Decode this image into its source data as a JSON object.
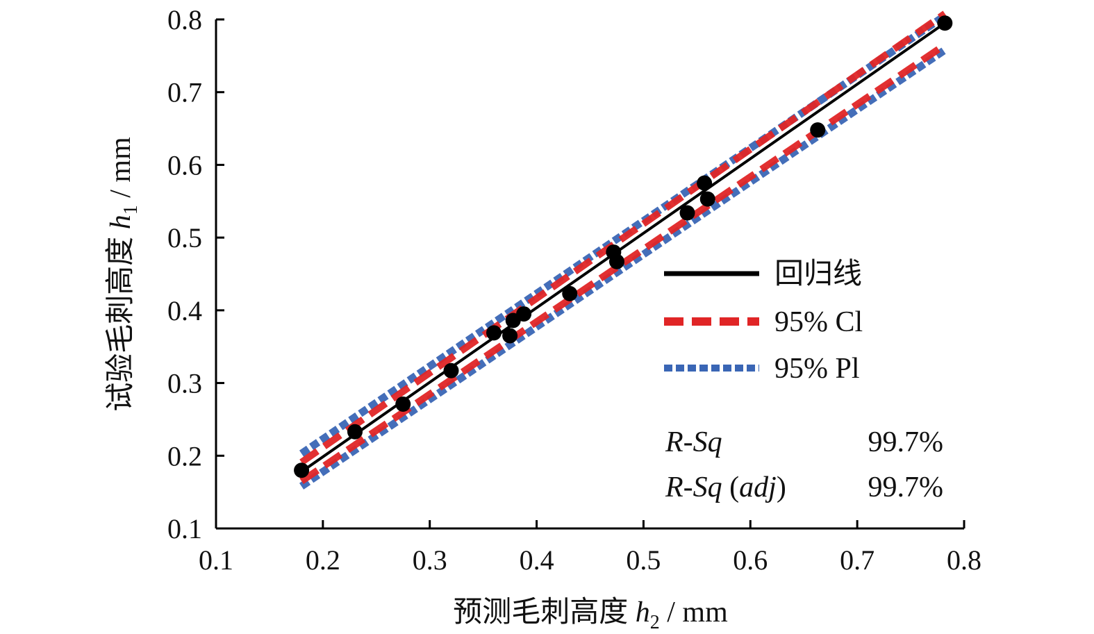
{
  "chart_data": {
    "type": "scatter",
    "x_axis": {
      "label_prefix": "预测毛刺高度 ",
      "label_var": "h",
      "label_sub": "2",
      "label_unit": " / mm",
      "range": [
        0.1,
        0.8
      ],
      "ticks": [
        0.1,
        0.2,
        0.3,
        0.4,
        0.5,
        0.6,
        0.7,
        0.8
      ],
      "tick_labels": [
        "0.1",
        "0.2",
        "0.3",
        "0.4",
        "0.5",
        "0.6",
        "0.7",
        "0.8"
      ]
    },
    "y_axis": {
      "label_prefix": "试验毛刺高度 ",
      "label_var": "h",
      "label_sub": "1",
      "label_unit": " / mm",
      "range": [
        0.1,
        0.8
      ],
      "ticks": [
        0.1,
        0.2,
        0.3,
        0.4,
        0.5,
        0.6,
        0.7,
        0.8
      ],
      "tick_labels": [
        "0.1",
        "0.2",
        "0.3",
        "0.4",
        "0.5",
        "0.6",
        "0.7",
        "0.8"
      ]
    },
    "grid": false,
    "legend_position": "right",
    "points": [
      {
        "x": 0.18,
        "y": 0.18
      },
      {
        "x": 0.23,
        "y": 0.233
      },
      {
        "x": 0.275,
        "y": 0.271
      },
      {
        "x": 0.32,
        "y": 0.317
      },
      {
        "x": 0.36,
        "y": 0.369
      },
      {
        "x": 0.375,
        "y": 0.365
      },
      {
        "x": 0.378,
        "y": 0.386
      },
      {
        "x": 0.388,
        "y": 0.395
      },
      {
        "x": 0.431,
        "y": 0.423
      },
      {
        "x": 0.472,
        "y": 0.48
      },
      {
        "x": 0.475,
        "y": 0.467
      },
      {
        "x": 0.541,
        "y": 0.534
      },
      {
        "x": 0.557,
        "y": 0.575
      },
      {
        "x": 0.56,
        "y": 0.553
      },
      {
        "x": 0.663,
        "y": 0.648
      },
      {
        "x": 0.782,
        "y": 0.795
      }
    ],
    "series": [
      {
        "name": "回归线",
        "style": "solid",
        "color": "#000000",
        "x": [
          0.18,
          0.782
        ],
        "y": [
          0.178,
          0.795
        ]
      },
      {
        "name": "95% Cl",
        "style": "dashed",
        "color": "#e02526",
        "x": [
          0.18,
          0.782
        ],
        "y_lower": [
          0.165,
          0.765
        ],
        "y_upper": [
          0.191,
          0.808
        ]
      },
      {
        "name": "95% Pl",
        "style": "dotted",
        "color": "#3a66b5",
        "x": [
          0.18,
          0.782
        ],
        "y_lower": [
          0.158,
          0.758
        ],
        "y_upper": [
          0.203,
          0.805
        ]
      }
    ],
    "stats": [
      {
        "label": "R-Sq",
        "value": "99.7%"
      },
      {
        "label_main": "R-Sq",
        "label_paren": "adj",
        "value": "99.7%"
      }
    ]
  },
  "colors": {
    "regression": "#000000",
    "ci": "#e02526",
    "pi": "#3a66b5",
    "points": "#000000"
  }
}
